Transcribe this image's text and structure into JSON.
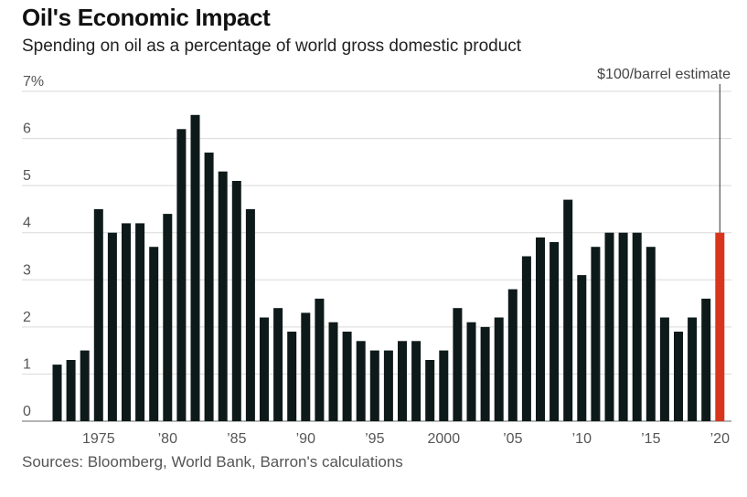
{
  "header": {
    "title": "Oil's Economic Impact",
    "subtitle": "Spending on oil as a percentage of world gross domestic product"
  },
  "footer": {
    "source": "Sources: Bloomberg, World Bank, Barron's calculations"
  },
  "colors": {
    "bar": "#0e1a1a",
    "highlight": "#d7361c",
    "grid": "#d9d9d9"
  },
  "chart_data": {
    "type": "bar",
    "title": "Oil's Economic Impact",
    "subtitle": "Spending on oil as a percentage of world gross domestic product",
    "xlabel": "",
    "ylabel": "",
    "ylim": [
      0,
      7
    ],
    "grid": true,
    "y_ticks": [
      {
        "value": 0,
        "label": "0"
      },
      {
        "value": 1,
        "label": "1"
      },
      {
        "value": 2,
        "label": "2"
      },
      {
        "value": 3,
        "label": "3"
      },
      {
        "value": 4,
        "label": "4"
      },
      {
        "value": 5,
        "label": "5"
      },
      {
        "value": 6,
        "label": "6"
      },
      {
        "value": 7,
        "label": "7%"
      }
    ],
    "x_ticks": [
      {
        "year": 1975,
        "label": "1975"
      },
      {
        "year": 1980,
        "label": "’80"
      },
      {
        "year": 1985,
        "label": "’85"
      },
      {
        "year": 1990,
        "label": "’90"
      },
      {
        "year": 1995,
        "label": "’95"
      },
      {
        "year": 2000,
        "label": "2000"
      },
      {
        "year": 2005,
        "label": "’05"
      },
      {
        "year": 2010,
        "label": "’10"
      },
      {
        "year": 2015,
        "label": "’15"
      },
      {
        "year": 2020,
        "label": "’20"
      }
    ],
    "x": [
      1972,
      1973,
      1974,
      1975,
      1976,
      1977,
      1978,
      1979,
      1980,
      1981,
      1982,
      1983,
      1984,
      1985,
      1986,
      1987,
      1988,
      1989,
      1990,
      1991,
      1992,
      1993,
      1994,
      1995,
      1996,
      1997,
      1998,
      1999,
      2000,
      2001,
      2002,
      2003,
      2004,
      2005,
      2006,
      2007,
      2008,
      2009,
      2010,
      2011,
      2012,
      2013,
      2014,
      2015,
      2016,
      2017,
      2018,
      2019,
      2020
    ],
    "values": [
      1.2,
      1.3,
      1.5,
      4.5,
      4.0,
      4.2,
      4.2,
      3.7,
      4.4,
      6.2,
      6.5,
      5.7,
      5.3,
      5.1,
      4.5,
      2.2,
      2.4,
      1.9,
      2.3,
      2.6,
      2.1,
      1.9,
      1.7,
      1.5,
      1.5,
      1.7,
      1.7,
      1.3,
      1.5,
      2.4,
      2.1,
      2.0,
      2.2,
      2.8,
      3.5,
      3.9,
      3.8,
      4.7,
      3.1,
      3.7,
      4.0,
      4.0,
      4.0,
      3.7,
      2.2,
      1.9,
      2.2,
      2.6,
      4.0
    ],
    "highlight": {
      "year": 2020,
      "label": "$100/barrel estimate"
    }
  }
}
